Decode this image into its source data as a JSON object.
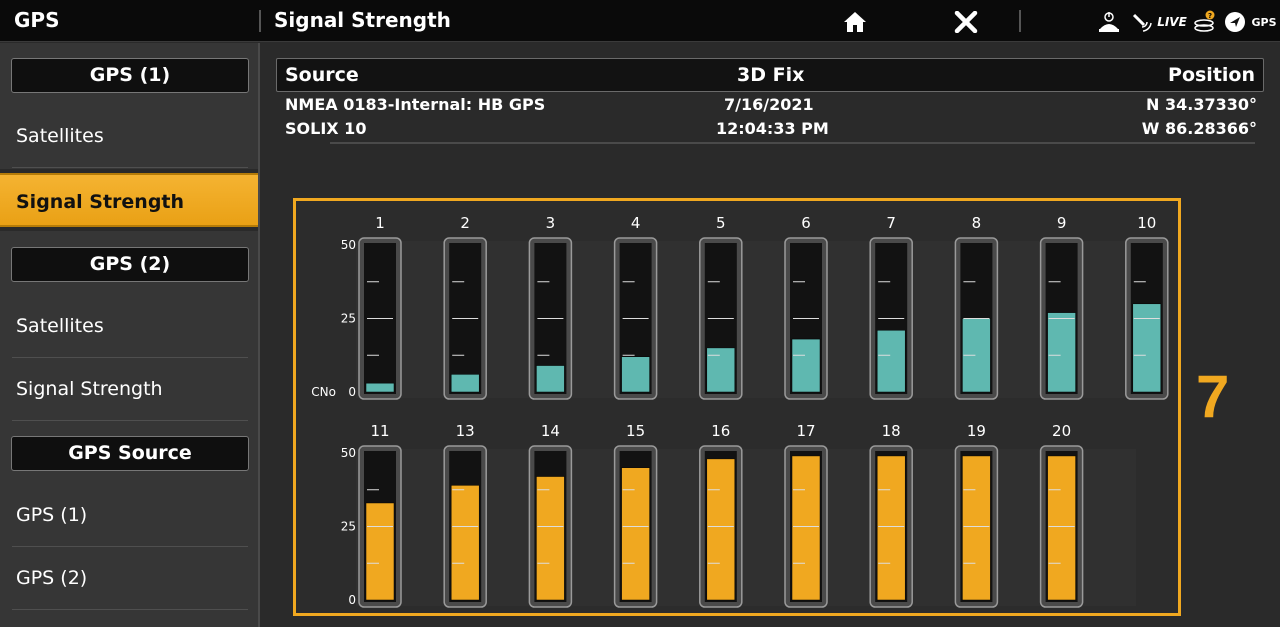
{
  "topbar": {
    "app_label": "GPS",
    "title": "Signal Strength",
    "home_icon": "home-icon",
    "close_icon": "close-icon",
    "live_label": "LIVE",
    "gps_status_label": "GPS"
  },
  "sidebar": {
    "gps1_header": "GPS (1)",
    "gps1_items": [
      "Satellites",
      "Signal Strength"
    ],
    "gps2_header": "GPS (2)",
    "gps2_items": [
      "Satellites",
      "Signal Strength"
    ],
    "source_header": "GPS Source",
    "source_items": [
      "GPS (1)",
      "GPS (2)"
    ],
    "active_item": "Signal Strength"
  },
  "info": {
    "headers": {
      "source": "Source",
      "fix": "3D Fix",
      "position": "Position"
    },
    "row1": {
      "source": "NMEA 0183-Internal: HB GPS",
      "fix": "7/16/2021",
      "position": "N 34.37330°"
    },
    "row2": {
      "source": "SOLIX 10",
      "fix": "12:04:33 PM",
      "position": "W 86.28366°"
    }
  },
  "fix_count": "7",
  "colors": {
    "accent": "#f0a820",
    "teal": "#5fb8b0",
    "satellite_used": "#f0a820"
  },
  "chart_data": {
    "type": "bar",
    "ylabel": "CNo",
    "ylim": [
      0,
      50
    ],
    "yticks": [
      "50",
      "25",
      "0"
    ],
    "rows": [
      {
        "categories": [
          "1",
          "2",
          "3",
          "4",
          "5",
          "6",
          "7",
          "8",
          "9",
          "10"
        ],
        "values": [
          3,
          6,
          9,
          12,
          15,
          18,
          21,
          25,
          27,
          30
        ],
        "color": "#5fb8b0"
      },
      {
        "categories": [
          "11",
          "13",
          "14",
          "15",
          "16",
          "17",
          "18",
          "19",
          "20"
        ],
        "values": [
          33,
          39,
          42,
          45,
          48,
          49,
          49,
          49,
          49
        ],
        "color": "#f0a820"
      }
    ]
  }
}
